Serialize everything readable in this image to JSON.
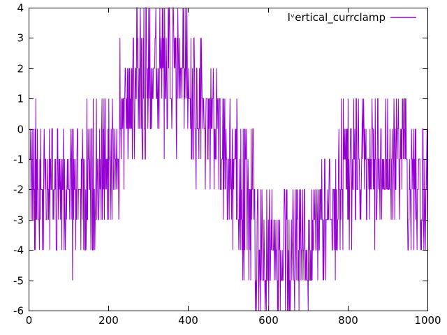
{
  "figure": {
    "background": "#ffffff",
    "border_color": "#000000",
    "tick_color": "#000000",
    "text_color": "#000000"
  },
  "chart_data": {
    "type": "line",
    "title": "",
    "legend": "Iᵛertical_currclamp",
    "legend_position": "top-right-inside",
    "series_color": "#9400d3",
    "xlabel": "",
    "ylabel": "",
    "xlim": [
      0,
      1000
    ],
    "ylim": [
      -6,
      4
    ],
    "x_ticks": [
      0,
      200,
      400,
      600,
      800,
      1000
    ],
    "y_ticks": [
      -6,
      -5,
      -4,
      -3,
      -2,
      -1,
      0,
      1,
      2,
      3,
      4
    ],
    "grid": false,
    "n_points": 1001,
    "signal_model": {
      "description": "Integer-quantized dithered waveform: at each x the value jumps randomly between integer levels inside a band [lo,hi]; the band steps through the listed segments (x0,x1,lo,hi), rising to a plateau at 4 near x=300-400, falling to a trough at -6 near x=566-712, recovering to 1..-3 near x=812-950.",
      "quantization_step": 1,
      "band_segments": [
        [
          0,
          10,
          -4,
          1
        ],
        [
          10,
          130,
          -4,
          0
        ],
        [
          130,
          172,
          -4,
          1
        ],
        [
          172,
          228,
          -3,
          1
        ],
        [
          228,
          246,
          -2,
          3
        ],
        [
          246,
          268,
          -1,
          3
        ],
        [
          268,
          300,
          -1,
          4
        ],
        [
          300,
          402,
          0,
          4
        ],
        [
          402,
          442,
          -1,
          3
        ],
        [
          442,
          481,
          -2,
          2
        ],
        [
          481,
          524,
          -3,
          1
        ],
        [
          524,
          566,
          -5,
          0
        ],
        [
          566,
          712,
          -6,
          -2
        ],
        [
          712,
          770,
          -5,
          -1
        ],
        [
          770,
          812,
          -4,
          1
        ],
        [
          812,
          950,
          -3,
          1
        ],
        [
          950,
          1001,
          -4,
          0
        ]
      ],
      "outliers": [
        [
          18,
          1
        ],
        [
          110,
          -5
        ],
        [
          340,
          -1
        ],
        [
          371,
          -1
        ],
        [
          420,
          -2
        ],
        [
          512,
          -4
        ],
        [
          868,
          -4
        ]
      ],
      "seed": 11
    }
  }
}
